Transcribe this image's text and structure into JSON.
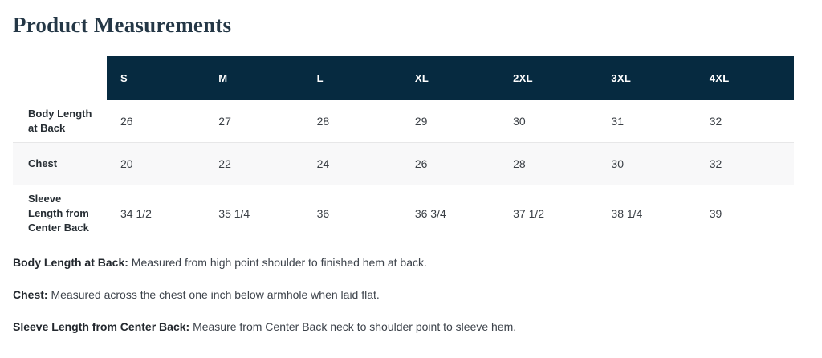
{
  "page": {
    "title": "Product Measurements"
  },
  "colors": {
    "header_bg": "#062a40",
    "stripe_bg": "#f8f8f9",
    "border": "#e7e7e8",
    "title_text": "#243746"
  },
  "table": {
    "size_headers": [
      "S",
      "M",
      "L",
      "XL",
      "2XL",
      "3XL",
      "4XL"
    ],
    "rows": [
      {
        "label": "Body Length\nat Back",
        "values": [
          "26",
          "27",
          "28",
          "29",
          "30",
          "31",
          "32"
        ]
      },
      {
        "label": "Chest",
        "values": [
          "20",
          "22",
          "24",
          "26",
          "28",
          "30",
          "32"
        ]
      },
      {
        "label": "Sleeve\nLength from\nCenter Back",
        "values": [
          "34 1/2",
          "35 1/4",
          "36",
          "36 3/4",
          "37 1/2",
          "38 1/4",
          "39"
        ]
      }
    ]
  },
  "definitions": [
    {
      "term": "Body Length at Back:",
      "text": "Measured from high point shoulder to finished hem at back."
    },
    {
      "term": "Chest:",
      "text": "Measured across the chest one inch below armhole when laid flat."
    },
    {
      "term": "Sleeve Length from Center Back:",
      "text": "Measure from Center Back neck to shoulder point to sleeve hem."
    }
  ]
}
